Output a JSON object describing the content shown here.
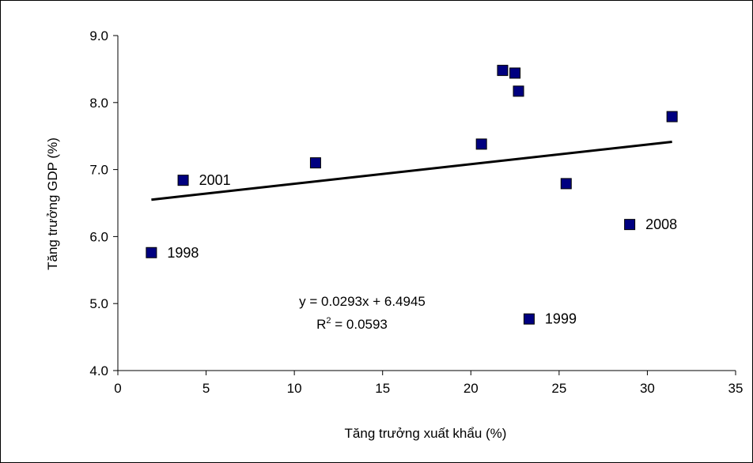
{
  "chart_data": {
    "type": "scatter",
    "xlabel": "Tăng trưởng xuất khẩu (%)",
    "ylabel": "Tăng trưởng GDP (%)",
    "xlim": [
      0,
      35
    ],
    "ylim": [
      4.0,
      9.0
    ],
    "x_ticks": [
      "0",
      "5",
      "10",
      "15",
      "20",
      "25",
      "30",
      "35"
    ],
    "y_ticks": [
      "9.0",
      "8.0",
      "7.0",
      "6.0",
      "5.0",
      "4.0"
    ],
    "grid": false,
    "legend": "none",
    "series": [
      {
        "marker_color": "#000080",
        "points": [
          {
            "x": 1.9,
            "y": 5.76,
            "label": "1998"
          },
          {
            "x": 3.7,
            "y": 6.84,
            "label": "2001"
          },
          {
            "x": 11.2,
            "y": 7.1,
            "label": ""
          },
          {
            "x": 20.6,
            "y": 7.38,
            "label": ""
          },
          {
            "x": 21.8,
            "y": 8.48,
            "label": ""
          },
          {
            "x": 22.5,
            "y": 8.44,
            "label": ""
          },
          {
            "x": 22.7,
            "y": 8.17,
            "label": ""
          },
          {
            "x": 23.3,
            "y": 4.77,
            "label": "1999"
          },
          {
            "x": 25.4,
            "y": 6.79,
            "label": ""
          },
          {
            "x": 29.0,
            "y": 6.18,
            "label": "2008"
          },
          {
            "x": 31.4,
            "y": 7.79,
            "label": ""
          }
        ]
      }
    ],
    "trendline": {
      "slope": 0.0293,
      "intercept": 6.4945,
      "x_range": [
        1.9,
        31.4
      ],
      "equation": "y = 0.0293x + 6.4945",
      "r2_prefix": "R",
      "r2_sup": "2",
      "r2_value": " = 0.0593"
    }
  }
}
